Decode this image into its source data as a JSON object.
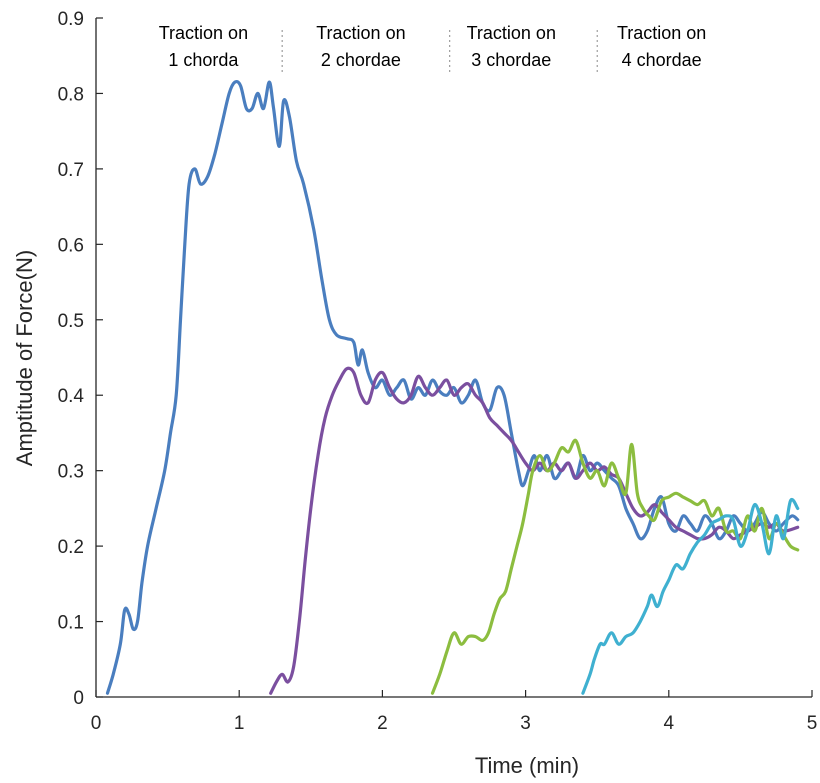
{
  "chart_data": {
    "type": "line",
    "xlabel": "Time (min)",
    "ylabel": "Amptitude of Force(N)",
    "xlim": [
      0,
      5
    ],
    "ylim": [
      0,
      0.9
    ],
    "xticks": [
      0,
      1,
      2,
      3,
      4,
      5
    ],
    "yticks": [
      0,
      0.1,
      0.2,
      0.3,
      0.4,
      0.5,
      0.6,
      0.7,
      0.8,
      0.9
    ],
    "ytick_labels": [
      "0",
      "0.1",
      "0.2",
      "0.3",
      "0.4",
      "0.5",
      "0.6",
      "0.7",
      "0.8",
      "0.9"
    ],
    "grid": false,
    "annotations": [
      {
        "lines": [
          "Traction on",
          "1 chorda"
        ],
        "x_center": 0.75
      },
      {
        "lines": [
          "Traction on",
          "2 chordae"
        ],
        "x_center": 1.85
      },
      {
        "lines": [
          "Traction on",
          "3 chordae"
        ],
        "x_center": 2.9
      },
      {
        "lines": [
          "Traction on",
          "4 chordae"
        ],
        "x_center": 3.95
      }
    ],
    "dividers_x": [
      1.3,
      2.47,
      3.5
    ],
    "series": [
      {
        "color": "#4a7ebf",
        "points": [
          [
            0.08,
            0.005
          ],
          [
            0.12,
            0.03
          ],
          [
            0.17,
            0.07
          ],
          [
            0.2,
            0.115
          ],
          [
            0.23,
            0.11
          ],
          [
            0.26,
            0.09
          ],
          [
            0.29,
            0.1
          ],
          [
            0.32,
            0.15
          ],
          [
            0.36,
            0.2
          ],
          [
            0.42,
            0.25
          ],
          [
            0.48,
            0.3
          ],
          [
            0.52,
            0.35
          ],
          [
            0.56,
            0.4
          ],
          [
            0.59,
            0.5
          ],
          [
            0.62,
            0.6
          ],
          [
            0.65,
            0.68
          ],
          [
            0.69,
            0.7
          ],
          [
            0.73,
            0.68
          ],
          [
            0.78,
            0.69
          ],
          [
            0.83,
            0.72
          ],
          [
            0.88,
            0.76
          ],
          [
            0.93,
            0.8
          ],
          [
            0.97,
            0.815
          ],
          [
            1.01,
            0.81
          ],
          [
            1.05,
            0.78
          ],
          [
            1.09,
            0.78
          ],
          [
            1.13,
            0.8
          ],
          [
            1.17,
            0.78
          ],
          [
            1.21,
            0.815
          ],
          [
            1.24,
            0.78
          ],
          [
            1.28,
            0.73
          ],
          [
            1.31,
            0.79
          ],
          [
            1.35,
            0.77
          ],
          [
            1.4,
            0.71
          ],
          [
            1.45,
            0.68
          ],
          [
            1.52,
            0.62
          ],
          [
            1.58,
            0.55
          ],
          [
            1.63,
            0.5
          ],
          [
            1.68,
            0.48
          ],
          [
            1.75,
            0.475
          ],
          [
            1.8,
            0.47
          ],
          [
            1.83,
            0.44
          ],
          [
            1.86,
            0.46
          ],
          [
            1.9,
            0.43
          ],
          [
            1.95,
            0.41
          ],
          [
            2.0,
            0.42
          ],
          [
            2.05,
            0.4
          ],
          [
            2.1,
            0.41
          ],
          [
            2.15,
            0.42
          ],
          [
            2.2,
            0.395
          ],
          [
            2.25,
            0.41
          ],
          [
            2.3,
            0.4
          ],
          [
            2.35,
            0.42
          ],
          [
            2.4,
            0.405
          ],
          [
            2.45,
            0.4
          ],
          [
            2.5,
            0.41
          ],
          [
            2.55,
            0.39
          ],
          [
            2.6,
            0.4
          ],
          [
            2.65,
            0.42
          ],
          [
            2.7,
            0.39
          ],
          [
            2.75,
            0.38
          ],
          [
            2.8,
            0.41
          ],
          [
            2.85,
            0.4
          ],
          [
            2.9,
            0.35
          ],
          [
            2.95,
            0.3
          ],
          [
            2.98,
            0.28
          ],
          [
            3.02,
            0.3
          ],
          [
            3.06,
            0.32
          ],
          [
            3.1,
            0.3
          ],
          [
            3.15,
            0.32
          ],
          [
            3.2,
            0.29
          ],
          [
            3.25,
            0.3
          ],
          [
            3.3,
            0.31
          ],
          [
            3.35,
            0.29
          ],
          [
            3.4,
            0.32
          ],
          [
            3.45,
            0.3
          ],
          [
            3.5,
            0.31
          ],
          [
            3.55,
            0.3
          ],
          [
            3.6,
            0.29
          ],
          [
            3.65,
            0.28
          ],
          [
            3.7,
            0.25
          ],
          [
            3.75,
            0.23
          ],
          [
            3.8,
            0.21
          ],
          [
            3.85,
            0.22
          ],
          [
            3.9,
            0.25
          ],
          [
            3.95,
            0.265
          ],
          [
            4.0,
            0.23
          ],
          [
            4.05,
            0.22
          ],
          [
            4.1,
            0.24
          ],
          [
            4.15,
            0.23
          ],
          [
            4.2,
            0.22
          ],
          [
            4.25,
            0.24
          ],
          [
            4.3,
            0.23
          ],
          [
            4.35,
            0.21
          ],
          [
            4.4,
            0.22
          ],
          [
            4.45,
            0.24
          ],
          [
            4.5,
            0.23
          ],
          [
            4.55,
            0.22
          ],
          [
            4.6,
            0.23
          ],
          [
            4.65,
            0.245
          ],
          [
            4.7,
            0.23
          ],
          [
            4.75,
            0.22
          ],
          [
            4.8,
            0.23
          ],
          [
            4.86,
            0.24
          ],
          [
            4.9,
            0.235
          ]
        ]
      },
      {
        "color": "#7b4f9f",
        "points": [
          [
            1.22,
            0.005
          ],
          [
            1.26,
            0.02
          ],
          [
            1.3,
            0.03
          ],
          [
            1.34,
            0.02
          ],
          [
            1.38,
            0.04
          ],
          [
            1.42,
            0.1
          ],
          [
            1.46,
            0.18
          ],
          [
            1.5,
            0.25
          ],
          [
            1.55,
            0.32
          ],
          [
            1.6,
            0.37
          ],
          [
            1.65,
            0.4
          ],
          [
            1.7,
            0.42
          ],
          [
            1.75,
            0.435
          ],
          [
            1.8,
            0.43
          ],
          [
            1.85,
            0.4
          ],
          [
            1.9,
            0.39
          ],
          [
            1.95,
            0.42
          ],
          [
            2.0,
            0.43
          ],
          [
            2.05,
            0.41
          ],
          [
            2.1,
            0.395
          ],
          [
            2.15,
            0.39
          ],
          [
            2.2,
            0.4
          ],
          [
            2.25,
            0.425
          ],
          [
            2.3,
            0.41
          ],
          [
            2.35,
            0.4
          ],
          [
            2.4,
            0.41
          ],
          [
            2.45,
            0.42
          ],
          [
            2.5,
            0.4
          ],
          [
            2.55,
            0.41
          ],
          [
            2.6,
            0.415
          ],
          [
            2.65,
            0.4
          ],
          [
            2.7,
            0.39
          ],
          [
            2.75,
            0.37
          ],
          [
            2.8,
            0.36
          ],
          [
            2.85,
            0.35
          ],
          [
            2.9,
            0.34
          ],
          [
            2.95,
            0.325
          ],
          [
            3.0,
            0.31
          ],
          [
            3.05,
            0.3
          ],
          [
            3.1,
            0.31
          ],
          [
            3.15,
            0.3
          ],
          [
            3.2,
            0.31
          ],
          [
            3.25,
            0.3
          ],
          [
            3.3,
            0.31
          ],
          [
            3.35,
            0.29
          ],
          [
            3.4,
            0.3
          ],
          [
            3.45,
            0.31
          ],
          [
            3.5,
            0.3
          ],
          [
            3.55,
            0.305
          ],
          [
            3.6,
            0.295
          ],
          [
            3.65,
            0.29
          ],
          [
            3.7,
            0.27
          ],
          [
            3.75,
            0.25
          ],
          [
            3.8,
            0.24
          ],
          [
            3.85,
            0.245
          ],
          [
            3.9,
            0.255
          ],
          [
            3.95,
            0.245
          ],
          [
            4.0,
            0.235
          ],
          [
            4.05,
            0.225
          ],
          [
            4.1,
            0.22
          ],
          [
            4.15,
            0.215
          ],
          [
            4.2,
            0.21
          ],
          [
            4.25,
            0.21
          ],
          [
            4.3,
            0.215
          ],
          [
            4.35,
            0.225
          ],
          [
            4.4,
            0.22
          ],
          [
            4.45,
            0.21
          ],
          [
            4.5,
            0.215
          ],
          [
            4.55,
            0.22
          ],
          [
            4.6,
            0.225
          ],
          [
            4.65,
            0.23
          ],
          [
            4.7,
            0.225
          ],
          [
            4.75,
            0.23
          ],
          [
            4.8,
            0.22
          ],
          [
            4.9,
            0.225
          ]
        ]
      },
      {
        "color": "#8cbd3f",
        "points": [
          [
            2.35,
            0.005
          ],
          [
            2.4,
            0.03
          ],
          [
            2.45,
            0.06
          ],
          [
            2.5,
            0.085
          ],
          [
            2.55,
            0.07
          ],
          [
            2.6,
            0.08
          ],
          [
            2.65,
            0.08
          ],
          [
            2.7,
            0.075
          ],
          [
            2.74,
            0.085
          ],
          [
            2.78,
            0.11
          ],
          [
            2.82,
            0.13
          ],
          [
            2.86,
            0.14
          ],
          [
            2.9,
            0.17
          ],
          [
            2.94,
            0.2
          ],
          [
            2.98,
            0.23
          ],
          [
            3.02,
            0.27
          ],
          [
            3.05,
            0.3
          ],
          [
            3.1,
            0.32
          ],
          [
            3.15,
            0.3
          ],
          [
            3.2,
            0.31
          ],
          [
            3.25,
            0.33
          ],
          [
            3.3,
            0.325
          ],
          [
            3.35,
            0.34
          ],
          [
            3.4,
            0.31
          ],
          [
            3.45,
            0.29
          ],
          [
            3.5,
            0.3
          ],
          [
            3.55,
            0.28
          ],
          [
            3.6,
            0.31
          ],
          [
            3.65,
            0.29
          ],
          [
            3.7,
            0.27
          ],
          [
            3.74,
            0.335
          ],
          [
            3.78,
            0.27
          ],
          [
            3.82,
            0.25
          ],
          [
            3.86,
            0.24
          ],
          [
            3.9,
            0.235
          ],
          [
            3.95,
            0.26
          ],
          [
            4.0,
            0.265
          ],
          [
            4.05,
            0.27
          ],
          [
            4.1,
            0.265
          ],
          [
            4.15,
            0.26
          ],
          [
            4.2,
            0.255
          ],
          [
            4.25,
            0.26
          ],
          [
            4.3,
            0.24
          ],
          [
            4.35,
            0.25
          ],
          [
            4.4,
            0.22
          ],
          [
            4.45,
            0.22
          ],
          [
            4.5,
            0.21
          ],
          [
            4.55,
            0.24
          ],
          [
            4.6,
            0.22
          ],
          [
            4.65,
            0.25
          ],
          [
            4.7,
            0.21
          ],
          [
            4.75,
            0.23
          ],
          [
            4.8,
            0.215
          ],
          [
            4.85,
            0.2
          ],
          [
            4.9,
            0.195
          ]
        ]
      },
      {
        "color": "#3fb0d0",
        "points": [
          [
            3.4,
            0.005
          ],
          [
            3.45,
            0.03
          ],
          [
            3.48,
            0.05
          ],
          [
            3.52,
            0.07
          ],
          [
            3.55,
            0.07
          ],
          [
            3.6,
            0.085
          ],
          [
            3.65,
            0.07
          ],
          [
            3.7,
            0.08
          ],
          [
            3.75,
            0.085
          ],
          [
            3.8,
            0.1
          ],
          [
            3.85,
            0.12
          ],
          [
            3.88,
            0.135
          ],
          [
            3.92,
            0.12
          ],
          [
            3.96,
            0.14
          ],
          [
            4.0,
            0.155
          ],
          [
            4.05,
            0.175
          ],
          [
            4.1,
            0.17
          ],
          [
            4.15,
            0.19
          ],
          [
            4.2,
            0.205
          ],
          [
            4.25,
            0.215
          ],
          [
            4.3,
            0.23
          ],
          [
            4.35,
            0.235
          ],
          [
            4.4,
            0.24
          ],
          [
            4.45,
            0.235
          ],
          [
            4.5,
            0.2
          ],
          [
            4.55,
            0.22
          ],
          [
            4.6,
            0.255
          ],
          [
            4.65,
            0.23
          ],
          [
            4.7,
            0.19
          ],
          [
            4.75,
            0.24
          ],
          [
            4.8,
            0.21
          ],
          [
            4.85,
            0.26
          ],
          [
            4.9,
            0.25
          ]
        ]
      }
    ]
  }
}
